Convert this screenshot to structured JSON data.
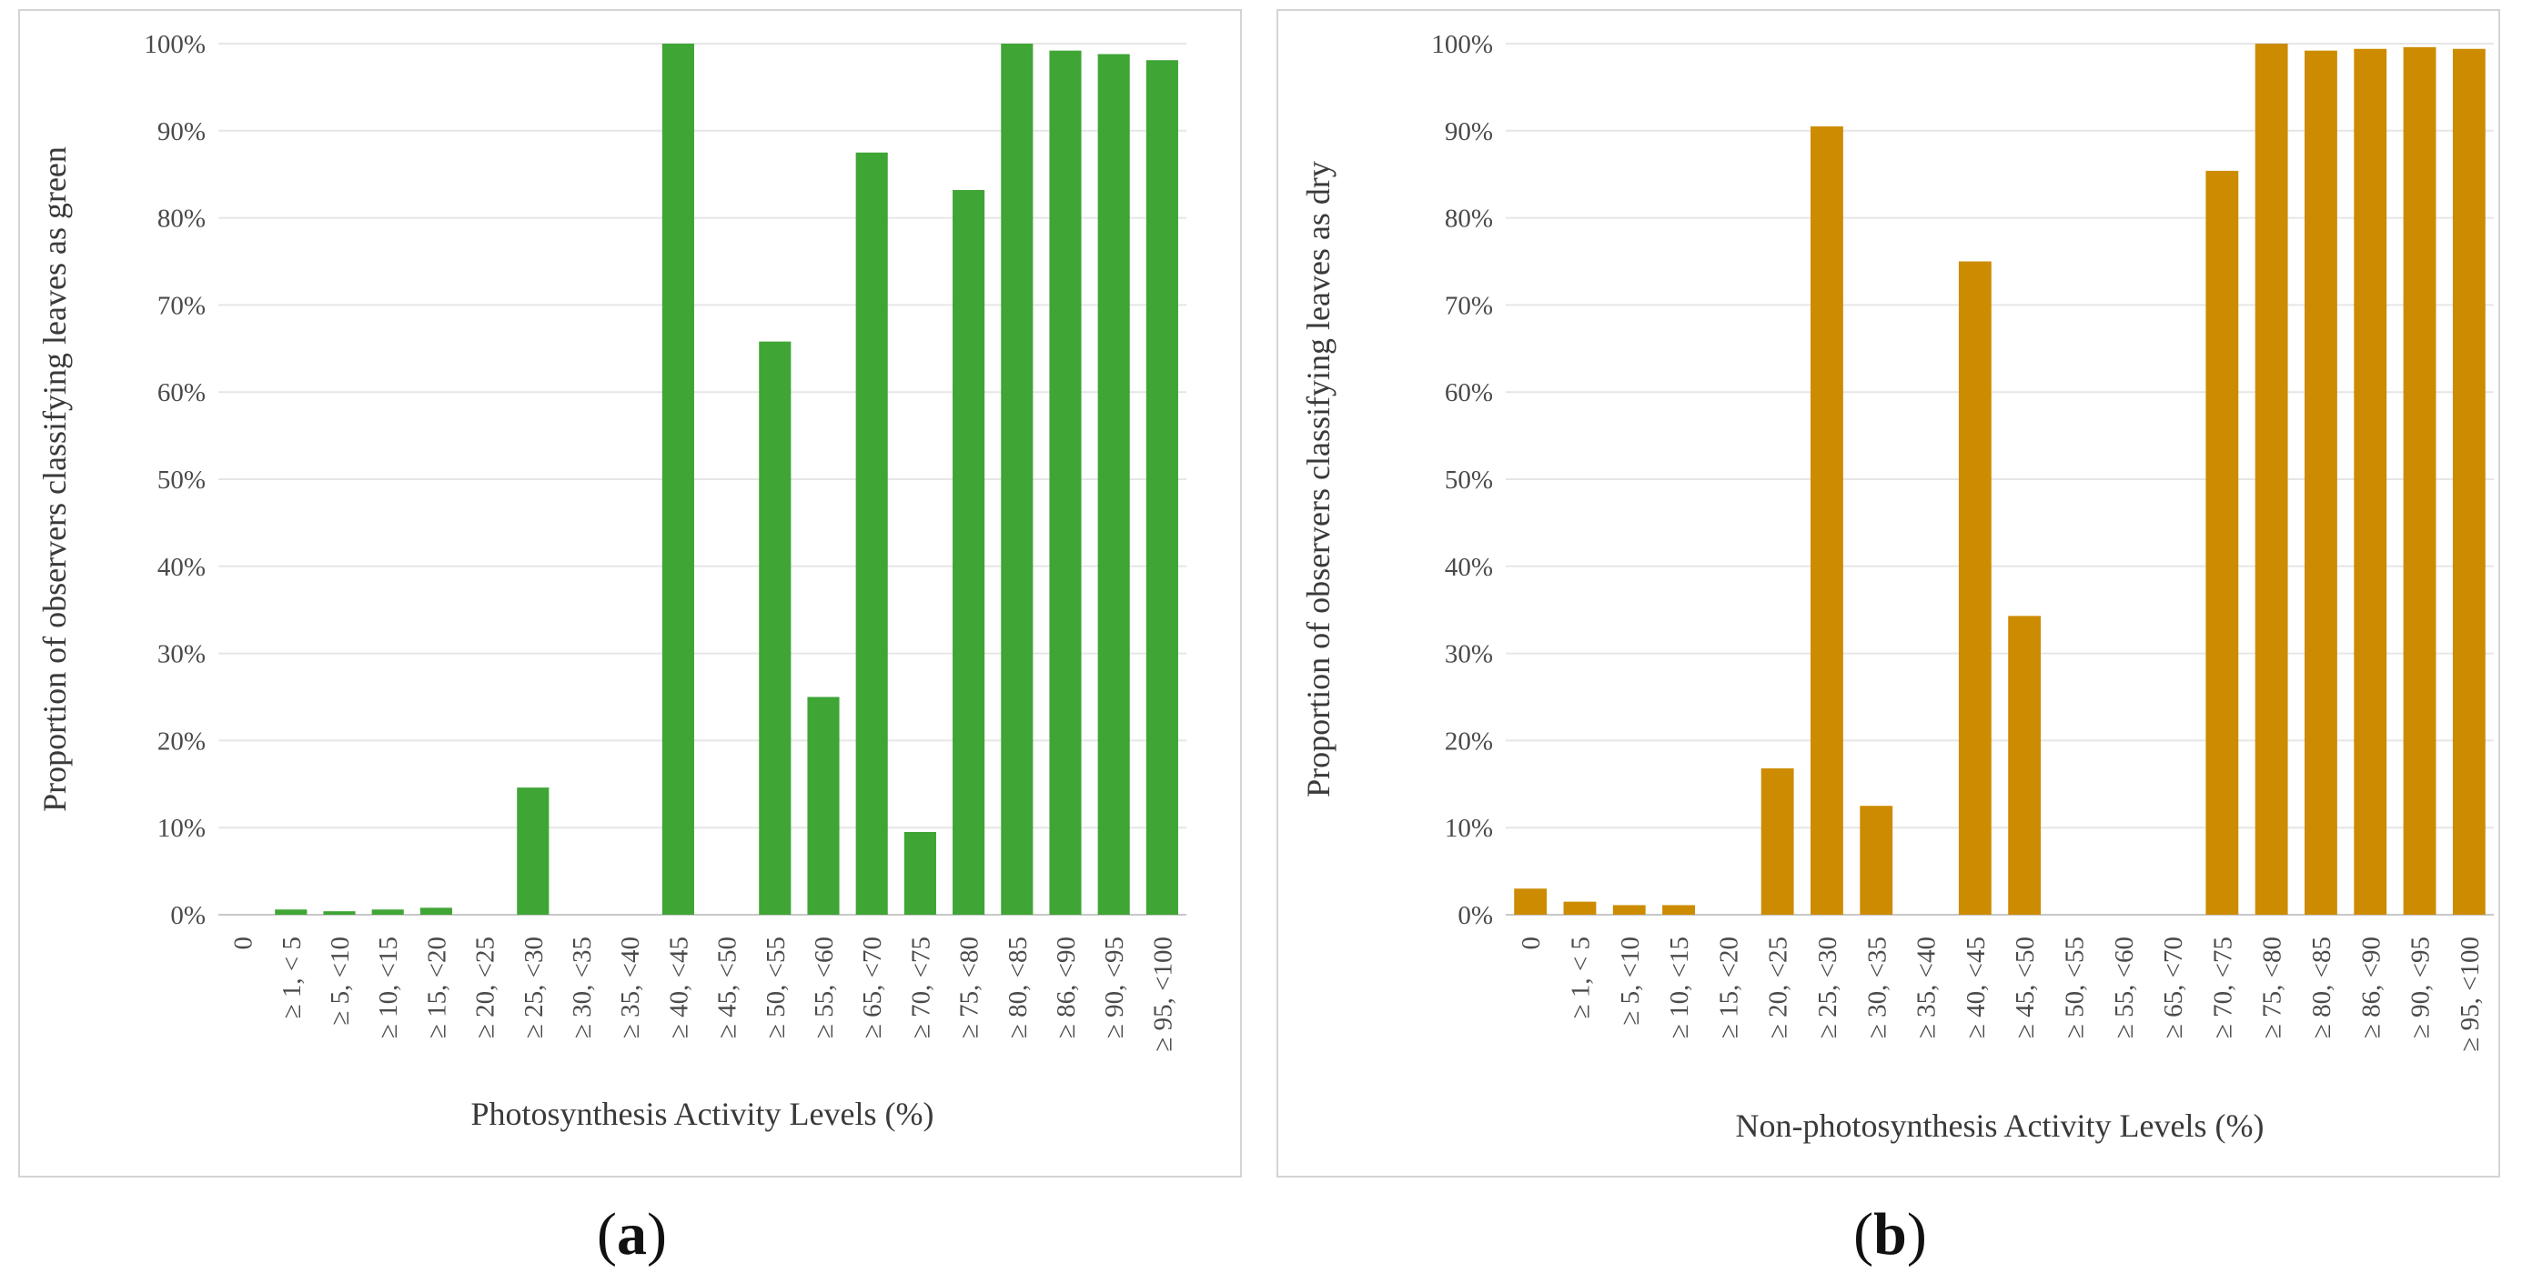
{
  "chart_data": [
    {
      "type": "bar",
      "panel_label": "a",
      "color": "#3fa535",
      "xlabel": "Photosynthesis Activity Levels (%)",
      "ylabel": "Proportion of observers classifying leaves as green",
      "ylim": [
        0,
        100
      ],
      "yticks": [
        "0%",
        "10%",
        "20%",
        "30%",
        "40%",
        "50%",
        "60%",
        "70%",
        "80%",
        "90%",
        "100%"
      ],
      "categories": [
        "0",
        "≥ 1, < 5",
        "≥ 5, <10",
        "≥ 10, <15",
        "≥ 15, <20",
        "≥ 20, <25",
        "≥ 25, <30",
        "≥ 30, <35",
        "≥ 35, <40",
        "≥ 40, <45",
        "≥ 45, <50",
        "≥ 50, <55",
        "≥ 55, <60",
        "≥ 65, <70",
        "≥ 70, <75",
        "≥ 75, <80",
        "≥ 80, <85",
        "≥ 86, <90",
        "≥ 90, <95",
        "≥ 95, <100"
      ],
      "values": [
        0,
        0.6,
        0.4,
        0.6,
        0.8,
        0,
        14.6,
        0,
        0,
        100,
        0,
        65.8,
        25,
        87.5,
        9.5,
        83.2,
        100,
        99.2,
        98.8,
        98.1
      ]
    },
    {
      "type": "bar",
      "panel_label": "b",
      "color": "#cc8b00",
      "xlabel": "Non-photosynthesis Activity Levels (%)",
      "ylabel": "Proportion of observers classifying leaves as dry",
      "ylim": [
        0,
        100
      ],
      "yticks": [
        "0%",
        "10%",
        "20%",
        "30%",
        "40%",
        "50%",
        "60%",
        "70%",
        "80%",
        "90%",
        "100%"
      ],
      "categories": [
        "0",
        "≥ 1, < 5",
        "≥ 5, <10",
        "≥ 10, <15",
        "≥ 15, <20",
        "≥ 20, <25",
        "≥ 25, <30",
        "≥ 30, <35",
        "≥ 35, <40",
        "≥ 40, <45",
        "≥ 45, <50",
        "≥ 50, <55",
        "≥ 55, <60",
        "≥ 65, <70",
        "≥ 70, <75",
        "≥ 75, <80",
        "≥ 80, <85",
        "≥ 86, <90",
        "≥ 90, <95",
        "≥ 95, <100"
      ],
      "values": [
        3,
        1.5,
        1.1,
        1.1,
        0,
        16.8,
        90.5,
        12.5,
        0,
        75,
        34.3,
        0,
        0,
        0,
        85.4,
        100,
        99.2,
        99.4,
        99.6,
        99.4
      ]
    }
  ]
}
